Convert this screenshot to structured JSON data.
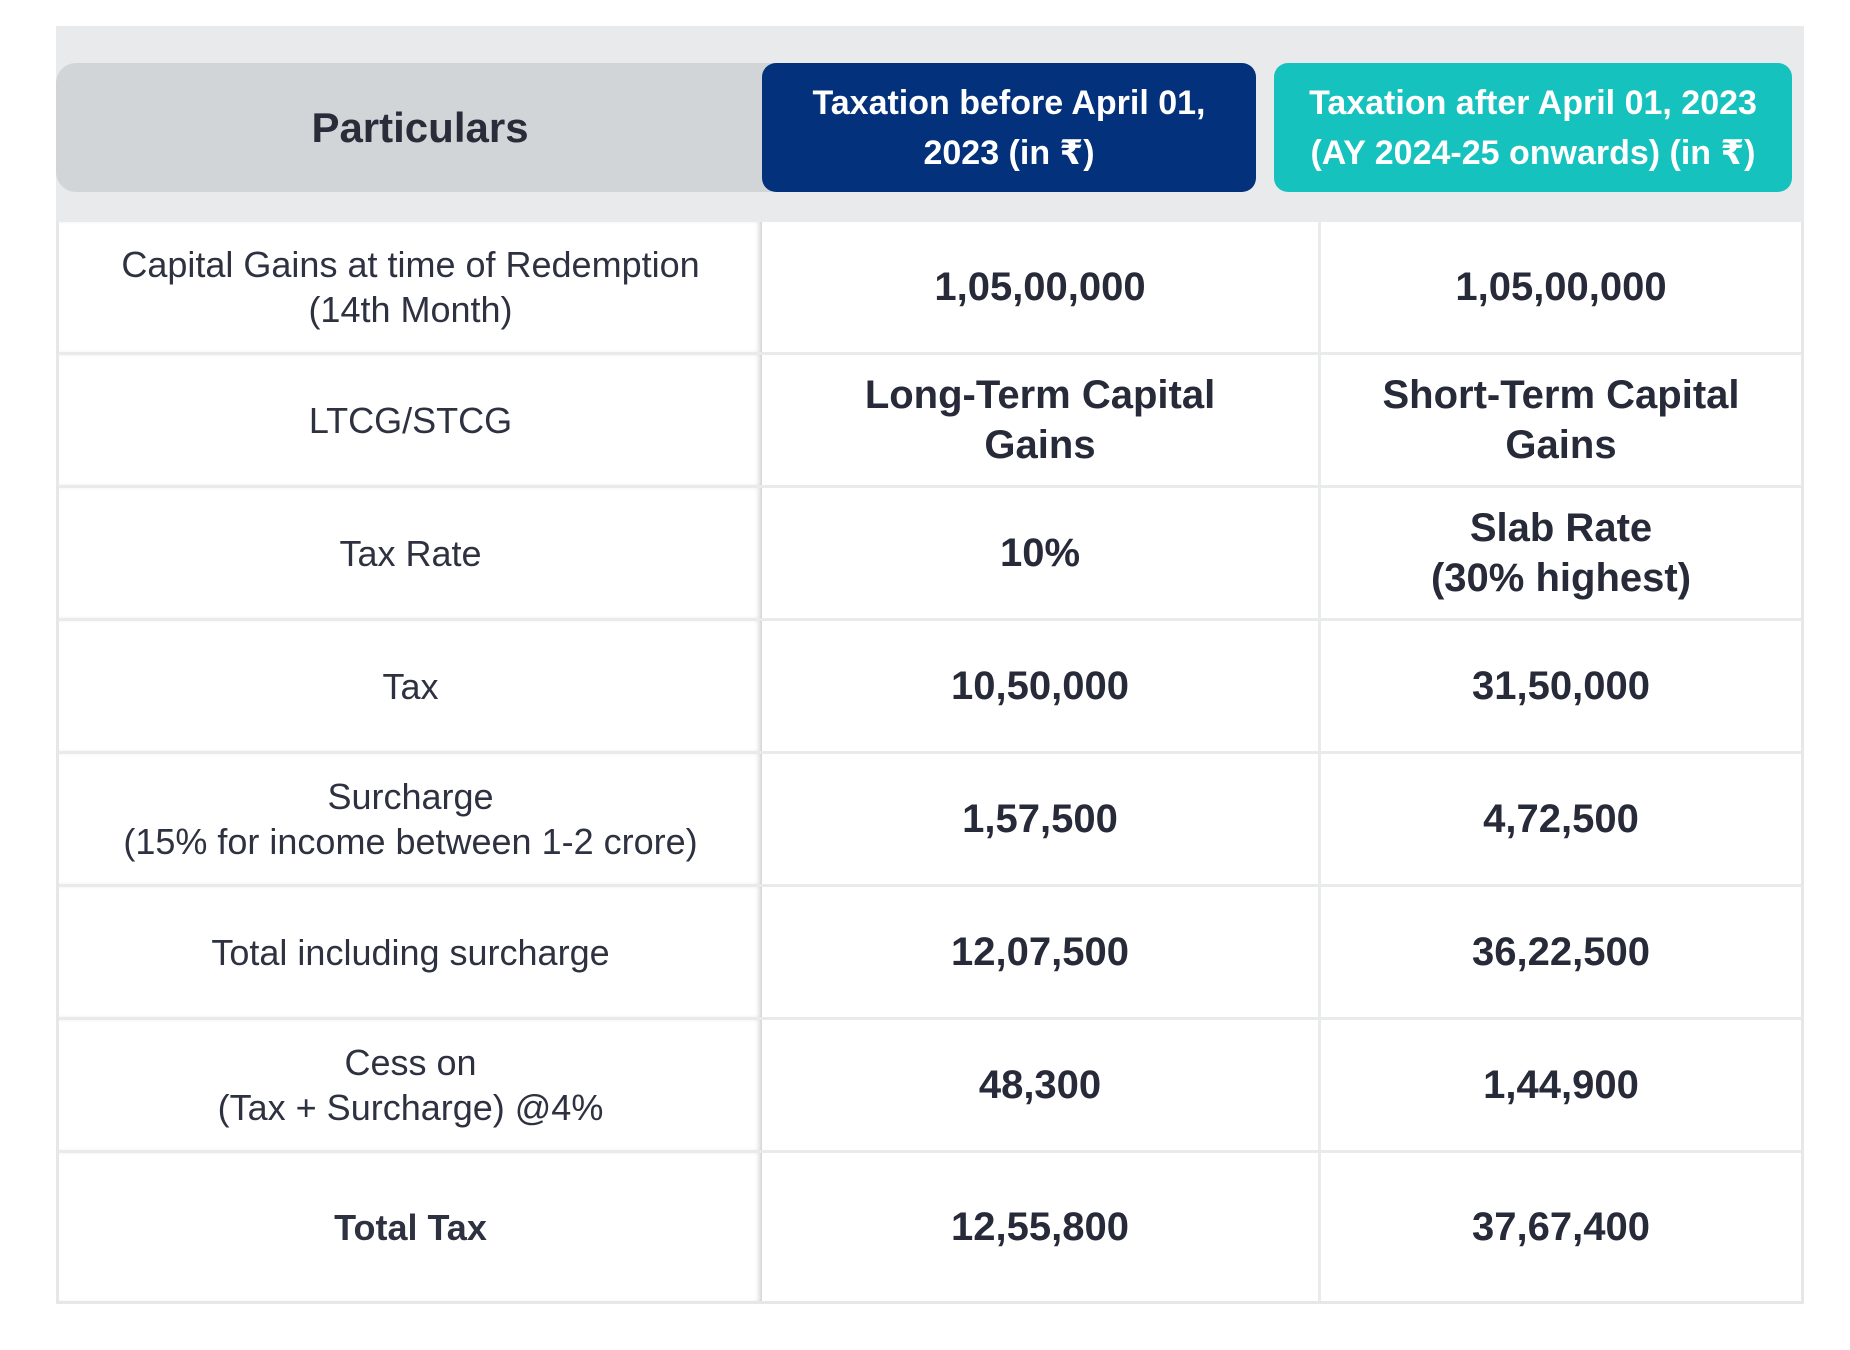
{
  "header": {
    "particulars": "Particulars",
    "before": "Taxation before April 01, 2023 (in ₹)",
    "after": "Taxation after April 01, 2023 (AY 2024-25 onwards) (in ₹)"
  },
  "rows": [
    {
      "label": "Capital Gains at time of Redemption\n(14th Month)",
      "before": "1,05,00,000",
      "after": "1,05,00,000"
    },
    {
      "label": "LTCG/STCG",
      "before": "Long-Term Capital\nGains",
      "after": "Short-Term Capital\nGains"
    },
    {
      "label": "Tax Rate",
      "before": "10%",
      "after": "Slab Rate\n(30% highest)"
    },
    {
      "label": "Tax",
      "before": "10,50,000",
      "after": "31,50,000"
    },
    {
      "label": "Surcharge\n(15% for income between 1-2 crore)",
      "before": "1,57,500",
      "after": "4,72,500"
    },
    {
      "label": "Total including surcharge",
      "before": "12,07,500",
      "after": "36,22,500"
    },
    {
      "label": "Cess on\n(Tax + Surcharge) @4%",
      "before": "48,300",
      "after": "1,44,900"
    },
    {
      "label": "Total Tax",
      "before": "12,55,800",
      "after": "37,67,400"
    }
  ]
}
